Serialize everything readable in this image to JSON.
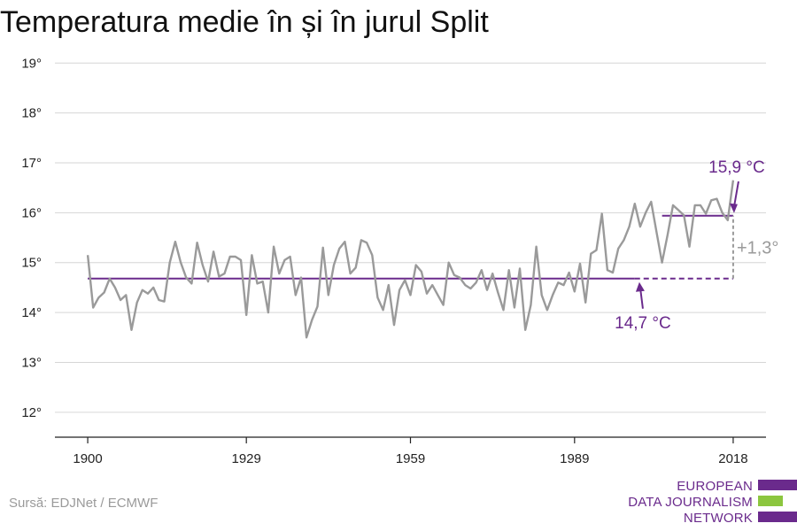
{
  "title": "Temperatura medie în și în jurul Split",
  "source": "Sursă: EDJNet / ECMWF",
  "logo": {
    "lines": [
      "EUROPEAN",
      "DATA JOURNALISM",
      "NETWORK"
    ]
  },
  "colors": {
    "purple": "#6a2a8c",
    "gray": "#9a9a9a",
    "green": "#8cc63f"
  },
  "chart_data": {
    "type": "line",
    "title": "Temperatura medie în și în jurul Split",
    "x_tick_labels": [
      "1900",
      "1929",
      "1959",
      "1989",
      "2018"
    ],
    "x_ticks": [
      1900,
      1929,
      1959,
      1989,
      2018
    ],
    "y_tick_labels": [
      "12°",
      "13°",
      "14°",
      "15°",
      "16°",
      "17°",
      "18°",
      "19°"
    ],
    "y_ticks": [
      12,
      13,
      14,
      15,
      16,
      17,
      18,
      19
    ],
    "xlim": [
      1894,
      2024
    ],
    "ylim": [
      11.5,
      19.2
    ],
    "grid": true,
    "series": [
      {
        "color": "#9a9a9a",
        "x": [
          1900,
          1901,
          1902,
          1903,
          1904,
          1905,
          1906,
          1907,
          1908,
          1909,
          1910,
          1911,
          1912,
          1913,
          1914,
          1915,
          1916,
          1917,
          1918,
          1919,
          1920,
          1921,
          1922,
          1923,
          1924,
          1925,
          1926,
          1927,
          1928,
          1929,
          1930,
          1931,
          1932,
          1933,
          1934,
          1935,
          1936,
          1937,
          1938,
          1939,
          1940,
          1941,
          1942,
          1943,
          1944,
          1945,
          1946,
          1947,
          1948,
          1949,
          1950,
          1951,
          1952,
          1953,
          1954,
          1955,
          1956,
          1957,
          1958,
          1959,
          1960,
          1961,
          1962,
          1963,
          1964,
          1965,
          1966,
          1967,
          1968,
          1969,
          1970,
          1971,
          1972,
          1973,
          1974,
          1975,
          1976,
          1977,
          1978,
          1979,
          1980,
          1981,
          1982,
          1983,
          1984,
          1985,
          1986,
          1987,
          1988,
          1989,
          1990,
          1991,
          1992,
          1993,
          1994,
          1995,
          1996,
          1997,
          1998,
          1999,
          2000,
          2001,
          2002,
          2003,
          2004,
          2005,
          2006,
          2007,
          2008,
          2009,
          2010,
          2011,
          2012,
          2013,
          2014,
          2015,
          2016,
          2017,
          2018
        ],
        "y": [
          15.15,
          14.1,
          14.3,
          14.4,
          14.68,
          14.5,
          14.25,
          14.35,
          13.65,
          14.2,
          14.45,
          14.38,
          14.5,
          14.25,
          14.22,
          15.0,
          15.42,
          15.0,
          14.7,
          14.58,
          15.4,
          14.95,
          14.62,
          15.22,
          14.72,
          14.78,
          15.12,
          15.12,
          15.05,
          13.95,
          15.15,
          14.58,
          14.62,
          14.0,
          15.32,
          14.78,
          15.05,
          15.12,
          14.35,
          14.7,
          13.5,
          13.85,
          14.12,
          15.3,
          14.35,
          14.95,
          15.28,
          15.42,
          14.78,
          14.9,
          15.45,
          15.4,
          15.15,
          14.3,
          14.05,
          14.55,
          13.75,
          14.45,
          14.65,
          14.35,
          14.95,
          14.82,
          14.38,
          14.55,
          14.35,
          14.15,
          15.0,
          14.75,
          14.7,
          14.55,
          14.48,
          14.6,
          14.85,
          14.45,
          14.78,
          14.4,
          14.05,
          14.85,
          14.1,
          14.88,
          13.65,
          14.15,
          15.32,
          14.35,
          14.05,
          14.35,
          14.6,
          14.55,
          14.8,
          14.42,
          14.98,
          14.2,
          15.18,
          15.25,
          15.98,
          14.85,
          14.8,
          15.28,
          15.45,
          15.72,
          16.18,
          15.72,
          16.0,
          16.22,
          15.6,
          15.0,
          15.55,
          16.15,
          16.05,
          15.95,
          15.32,
          16.15,
          16.15,
          15.98,
          16.25,
          16.28,
          16.0,
          15.85,
          16.65
        ]
      }
    ],
    "reference_lines": [
      {
        "label": "14,7 °C",
        "value": 14.68,
        "from": 1900,
        "to": 2000,
        "style": "solid"
      },
      {
        "value": 14.68,
        "from": 2000,
        "to": 2018,
        "style": "dashed"
      },
      {
        "label": "15,9 °C",
        "value": 15.94,
        "from": 2005,
        "to": 2018,
        "style": "solid"
      }
    ],
    "difference_annotation": {
      "label": "+1,3°",
      "x": 2018,
      "from": 14.68,
      "to": 15.94
    }
  }
}
